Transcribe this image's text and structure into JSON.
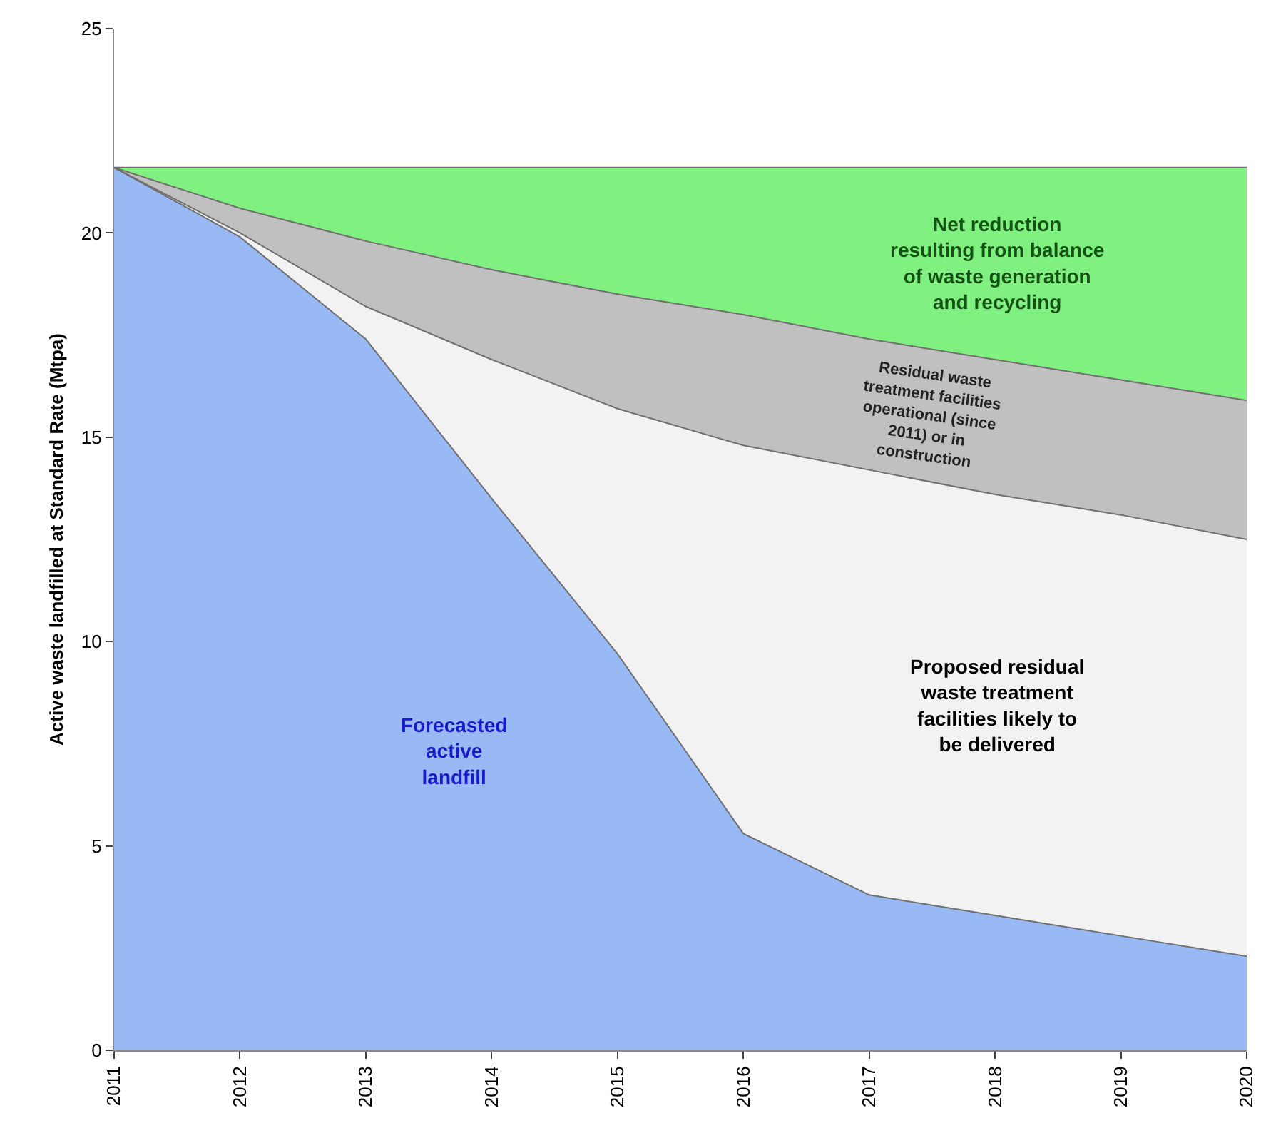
{
  "chart_data": {
    "type": "area",
    "stacked": true,
    "ylabel": "Active waste landfilled at Standard Rate (Mtpa)",
    "x": [
      2011,
      2012,
      2013,
      2014,
      2015,
      2016,
      2017,
      2018,
      2019,
      2020
    ],
    "series": [
      {
        "name": "Forecasted active landfill",
        "color": "#99b9f5",
        "values": [
          21.6,
          19.9,
          17.4,
          13.5,
          9.7,
          5.3,
          3.8,
          3.3,
          2.8,
          2.3
        ]
      },
      {
        "name": "Proposed residual waste treatment facilities likely to be delivered",
        "color": "#f2f2f2",
        "values": [
          0,
          0.1,
          0.8,
          3.4,
          6.0,
          9.5,
          10.4,
          10.3,
          10.3,
          10.2
        ]
      },
      {
        "name": "Residual waste treatment facilities operational (since 2011) or in construction",
        "color": "#c0c0c0",
        "values": [
          0,
          0.6,
          1.6,
          2.2,
          2.8,
          3.2,
          3.2,
          3.3,
          3.3,
          3.4
        ]
      },
      {
        "name": "Net reduction resulting from balance of waste generation and recycling",
        "color": "#80f080",
        "values": [
          0,
          1.0,
          1.8,
          2.5,
          3.1,
          3.6,
          4.2,
          4.7,
          5.2,
          5.7
        ]
      }
    ],
    "xlim": [
      2011,
      2020
    ],
    "xticks": [
      2011,
      2012,
      2013,
      2014,
      2015,
      2016,
      2017,
      2018,
      2019,
      2020
    ],
    "ylim": [
      0,
      25
    ],
    "yticks": [
      0,
      5,
      10,
      15,
      20,
      25
    ],
    "grid": false,
    "legend": false
  }
}
